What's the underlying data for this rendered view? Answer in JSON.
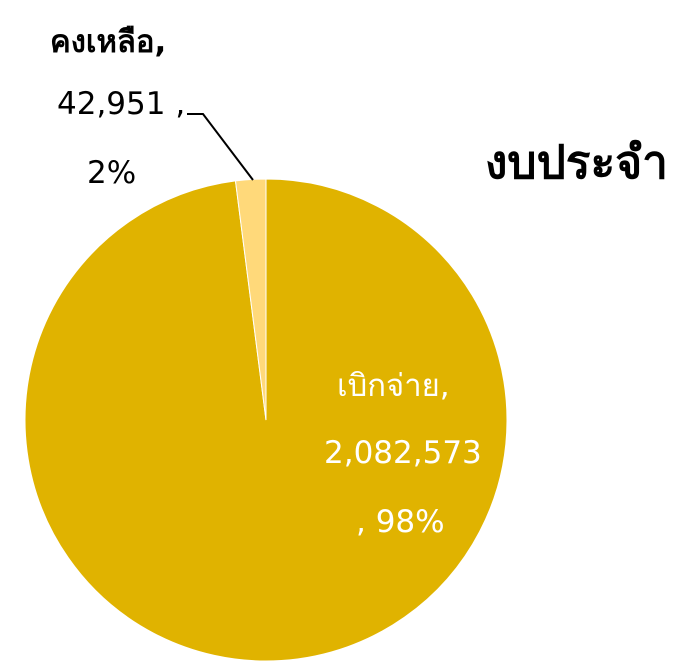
{
  "chart_data": {
    "type": "pie",
    "title": "งบประจำ",
    "slices": [
      {
        "name": "เบิกจ่าย",
        "value": 2082573,
        "value_label": "2,082,573",
        "percent_label": ", 98%",
        "color": "#E0B300"
      },
      {
        "name": "คงเหลือ",
        "value": 42951,
        "value_label": "42,951 ,",
        "percent_label": "2%",
        "color": "#FFD97A"
      }
    ],
    "slice_labels": {
      "spent_name": "เบิกจ่าย,",
      "remaining_name": "คงเหลือ,"
    }
  }
}
